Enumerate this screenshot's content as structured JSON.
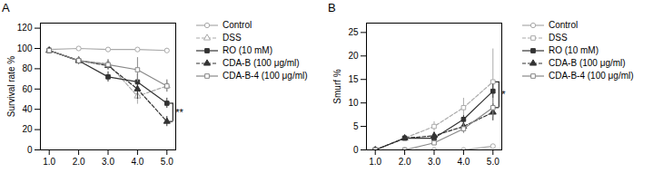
{
  "chart_data": [
    {
      "type": "line",
      "title": "A",
      "ylabel": "Survival rate %",
      "xlim": [
        0.7,
        5.3
      ],
      "ylim": [
        0,
        125
      ],
      "xticks": [
        1,
        2,
        3,
        4,
        5
      ],
      "yticks": [
        0,
        20,
        40,
        60,
        80,
        100,
        120
      ],
      "x": [
        1,
        2,
        3,
        4,
        5
      ],
      "series": [
        {
          "name": "Control",
          "color": "#aaaaaa",
          "line_style": "solid",
          "marker": "circle_open",
          "values": [
            99,
            100,
            99,
            99,
            98
          ],
          "yerr": [
            1,
            1,
            1,
            1,
            2
          ]
        },
        {
          "name": "DSS",
          "color": "#aaaaaa",
          "line_style": "dashed",
          "marker": "triangle_open",
          "values": [
            98,
            88,
            85,
            53,
            63
          ],
          "yerr": [
            2,
            3,
            4,
            8,
            6
          ]
        },
        {
          "name": "RO (10 mM)",
          "color": "#333333",
          "line_style": "solid",
          "marker": "square",
          "values": [
            98,
            88,
            72,
            67,
            46
          ],
          "yerr": [
            2,
            4,
            5,
            8,
            5
          ]
        },
        {
          "name": "CDA-B (100 μg/ml)",
          "color": "#333333",
          "line_style": "dashed",
          "marker": "triangle",
          "values": [
            98,
            88,
            83,
            60,
            28
          ],
          "yerr": [
            2,
            3,
            4,
            10,
            5
          ]
        },
        {
          "name": "CDA-B-4 (100 μg/ml)",
          "color": "#888888",
          "line_style": "solid",
          "marker": "square_open",
          "values": [
            98,
            88,
            84,
            79,
            63
          ],
          "yerr": [
            2,
            4,
            5,
            12,
            6
          ]
        }
      ],
      "annotations": [
        {
          "text": "**",
          "x": 5.2,
          "y1": 46,
          "y2": 28
        }
      ]
    },
    {
      "type": "line",
      "title": "B",
      "ylabel": "Smurf %",
      "xlim": [
        0.7,
        5.3
      ],
      "ylim": [
        0,
        27
      ],
      "xticks": [
        1,
        2,
        3,
        4,
        5
      ],
      "yticks": [
        0,
        5,
        10,
        15,
        20,
        25
      ],
      "x": [
        1,
        2,
        3,
        4,
        5
      ],
      "series": [
        {
          "name": "Control",
          "color": "#aaaaaa",
          "line_style": "solid",
          "marker": "circle_open",
          "values": [
            0,
            0,
            0,
            0,
            0.8
          ],
          "yerr": [
            0,
            0,
            0,
            0,
            0.3
          ]
        },
        {
          "name": "DSS",
          "color": "#aaaaaa",
          "line_style": "dashed",
          "marker": "square_open",
          "values": [
            0,
            2.5,
            5,
            9,
            14.5
          ],
          "yerr": [
            0,
            0.5,
            1,
            2,
            7
          ]
        },
        {
          "name": "RO (10 mM)",
          "color": "#333333",
          "line_style": "solid",
          "marker": "square",
          "values": [
            0,
            2.5,
            2.5,
            6.5,
            12.5
          ],
          "yerr": [
            0,
            0.3,
            0.5,
            0.8,
            1.5
          ]
        },
        {
          "name": "CDA-B (100 μg/ml)",
          "color": "#333333",
          "line_style": "dashed",
          "marker": "triangle",
          "values": [
            0,
            2.5,
            3,
            5,
            8
          ],
          "yerr": [
            0,
            0.4,
            0.8,
            1.2,
            1.8
          ]
        },
        {
          "name": "CDA-B-4 (100 μg/ml)",
          "color": "#888888",
          "line_style": "solid",
          "marker": "square_open",
          "values": [
            0,
            0,
            1.5,
            4.5,
            9
          ],
          "yerr": [
            0,
            0,
            0.5,
            1,
            2
          ]
        }
      ],
      "annotations": [
        {
          "text": "*",
          "x": 5.2,
          "y1": 14.5,
          "y2": 9
        }
      ]
    }
  ]
}
